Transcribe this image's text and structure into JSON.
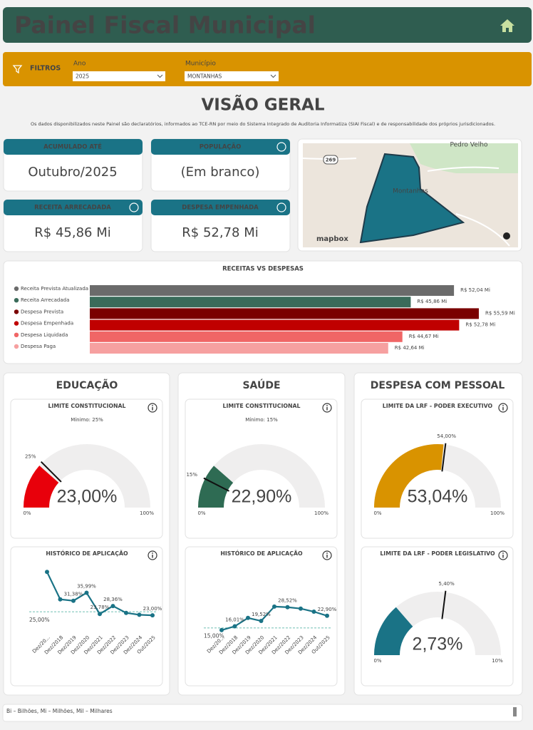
{
  "header": {
    "title": "Painel Fiscal Municipal"
  },
  "filters": {
    "label": "FILTROS",
    "fields": [
      {
        "label": "Ano",
        "value": "2025"
      },
      {
        "label": "Município",
        "value": "MONTANHAS"
      }
    ]
  },
  "overview": {
    "title": "VISÃO GERAL",
    "note": "Os dados disponibilizados neste Painel são declaratórios, informados ao TCE-RN por meio do Sistema Integrado de Auditoria Informatiza (SIAI Fiscal) e de responsabilidade dos próprios jurisdicionados."
  },
  "cards": [
    {
      "label": "ACUMULADO ATÉ",
      "value": "Outubro/2025"
    },
    {
      "label": "POPULAÇÃO",
      "value": "(Em branco)"
    },
    {
      "label": "RECEITA ARRECADADA",
      "value": "R$ 45,86 Mi"
    },
    {
      "label": "DESPESA EMPENHADA",
      "value": "R$ 52,78 Mi"
    }
  ],
  "map": {
    "labels": [
      "Pedro Velho",
      "Montanhas",
      "269",
      "mapbox"
    ]
  },
  "bar_chart": {
    "type": "bar",
    "title": "RECEITAS VS DESPESAS",
    "categories": [
      "Receita Prevista Atualizada",
      "Receita Arrecadada",
      "Despesa Prevista",
      "Despesa Empenhada",
      "Despesa Liquidada",
      "Despesa Paga"
    ],
    "values": [
      52.04,
      45.86,
      55.59,
      52.78,
      44.67,
      42.64
    ],
    "value_labels": [
      "R$ 52,04 Mi",
      "R$ 45,86 Mi",
      "R$ 55,59 Mi",
      "R$ 52,78 Mi",
      "R$ 44,67 Mi",
      "R$ 42,64 Mi"
    ],
    "colors": [
      "#6b6b6b",
      "#3a6b5a",
      "#7a0000",
      "#c00000",
      "#f06666",
      "#f6a0a0"
    ],
    "xlim": [
      0,
      56
    ]
  },
  "sections": [
    {
      "title": "EDUCAÇÃO",
      "panels": [
        {
          "type": "gauge",
          "title": "LIMITE CONSTITUCIONAL",
          "subtitle": "Mínimo: 25%",
          "value": 23.0,
          "value_label": "23,00%",
          "target": 25,
          "target_label": "25%",
          "min": 0,
          "max": 100,
          "min_label": "0%",
          "max_label": "100%",
          "color": "#e8000b"
        },
        {
          "type": "line",
          "title": "HISTÓRICO DE APLICAÇÃO",
          "categories": [
            "Dez/20...",
            "Dez/2018",
            "Dez/2019",
            "Dez/2020",
            "Dez/2021",
            "Dez/2022",
            "Dez/2023",
            "Dez/2024",
            "Out/2025"
          ],
          "values": [
            48,
            32.2,
            31.38,
            35.99,
            23.78,
            28.36,
            24.4,
            23.3,
            23.0
          ],
          "value_labels": [
            null,
            null,
            "31,38%",
            "35,99%",
            "23,78%",
            "28,36%",
            null,
            null,
            "23,00%"
          ],
          "reference": 25,
          "reference_label": "25,00%",
          "ylim": [
            14,
            51
          ],
          "color": "#1a7386"
        }
      ]
    },
    {
      "title": "SAÚDE",
      "panels": [
        {
          "type": "gauge",
          "title": "LIMITE CONSTITUCIONAL",
          "subtitle": "Mínimo: 15%",
          "value": 22.9,
          "value_label": "22,90%",
          "target": 15,
          "target_label": "15%",
          "min": 0,
          "max": 100,
          "min_label": "0%",
          "max_label": "100%",
          "color": "#2e6b53"
        },
        {
          "type": "line",
          "title": "HISTÓRICO DE APLICAÇÃO",
          "categories": [
            "Dez/20...",
            "Dez/2018",
            "Dez/2019",
            "Dez/2020",
            "Dez/2021",
            "Dez/2022",
            "Dez/2023",
            "Dez/2024",
            "Out/2025"
          ],
          "values": [
            13.5,
            16.01,
            21.5,
            19.52,
            28.9,
            28.52,
            27.6,
            25.6,
            22.9
          ],
          "value_labels": [
            null,
            "16,01%",
            null,
            "19,52%",
            null,
            "28,52%",
            null,
            null,
            "22,90%"
          ],
          "reference": 15,
          "reference_label": "15,00%",
          "ylim": [
            13,
            55
          ],
          "color": "#1a7386"
        }
      ]
    },
    {
      "title": "DESPESA COM PESSOAL",
      "panels": [
        {
          "type": "gauge",
          "title": "LIMITE DA LRF - PODER EXECUTIVO",
          "value": 53.04,
          "value_label": "53,04%",
          "target": 54.0,
          "target_label": "54,00%",
          "min": 0,
          "max": 100,
          "min_label": "0%",
          "max_label": "100%",
          "color": "#d99300"
        },
        {
          "type": "gauge",
          "title": "LIMITE DA LRF - PODER LEGISLATIVO",
          "value": 2.73,
          "value_label": "2,73%",
          "target": 5.4,
          "target_label": "5,40%",
          "min": 0,
          "max": 10,
          "min_label": "0%",
          "max_label": "10%",
          "color": "#1a7386"
        }
      ]
    }
  ],
  "footer": {
    "text": "Bi – Bilhões, Mi – Milhões, Mil – Milhares"
  }
}
